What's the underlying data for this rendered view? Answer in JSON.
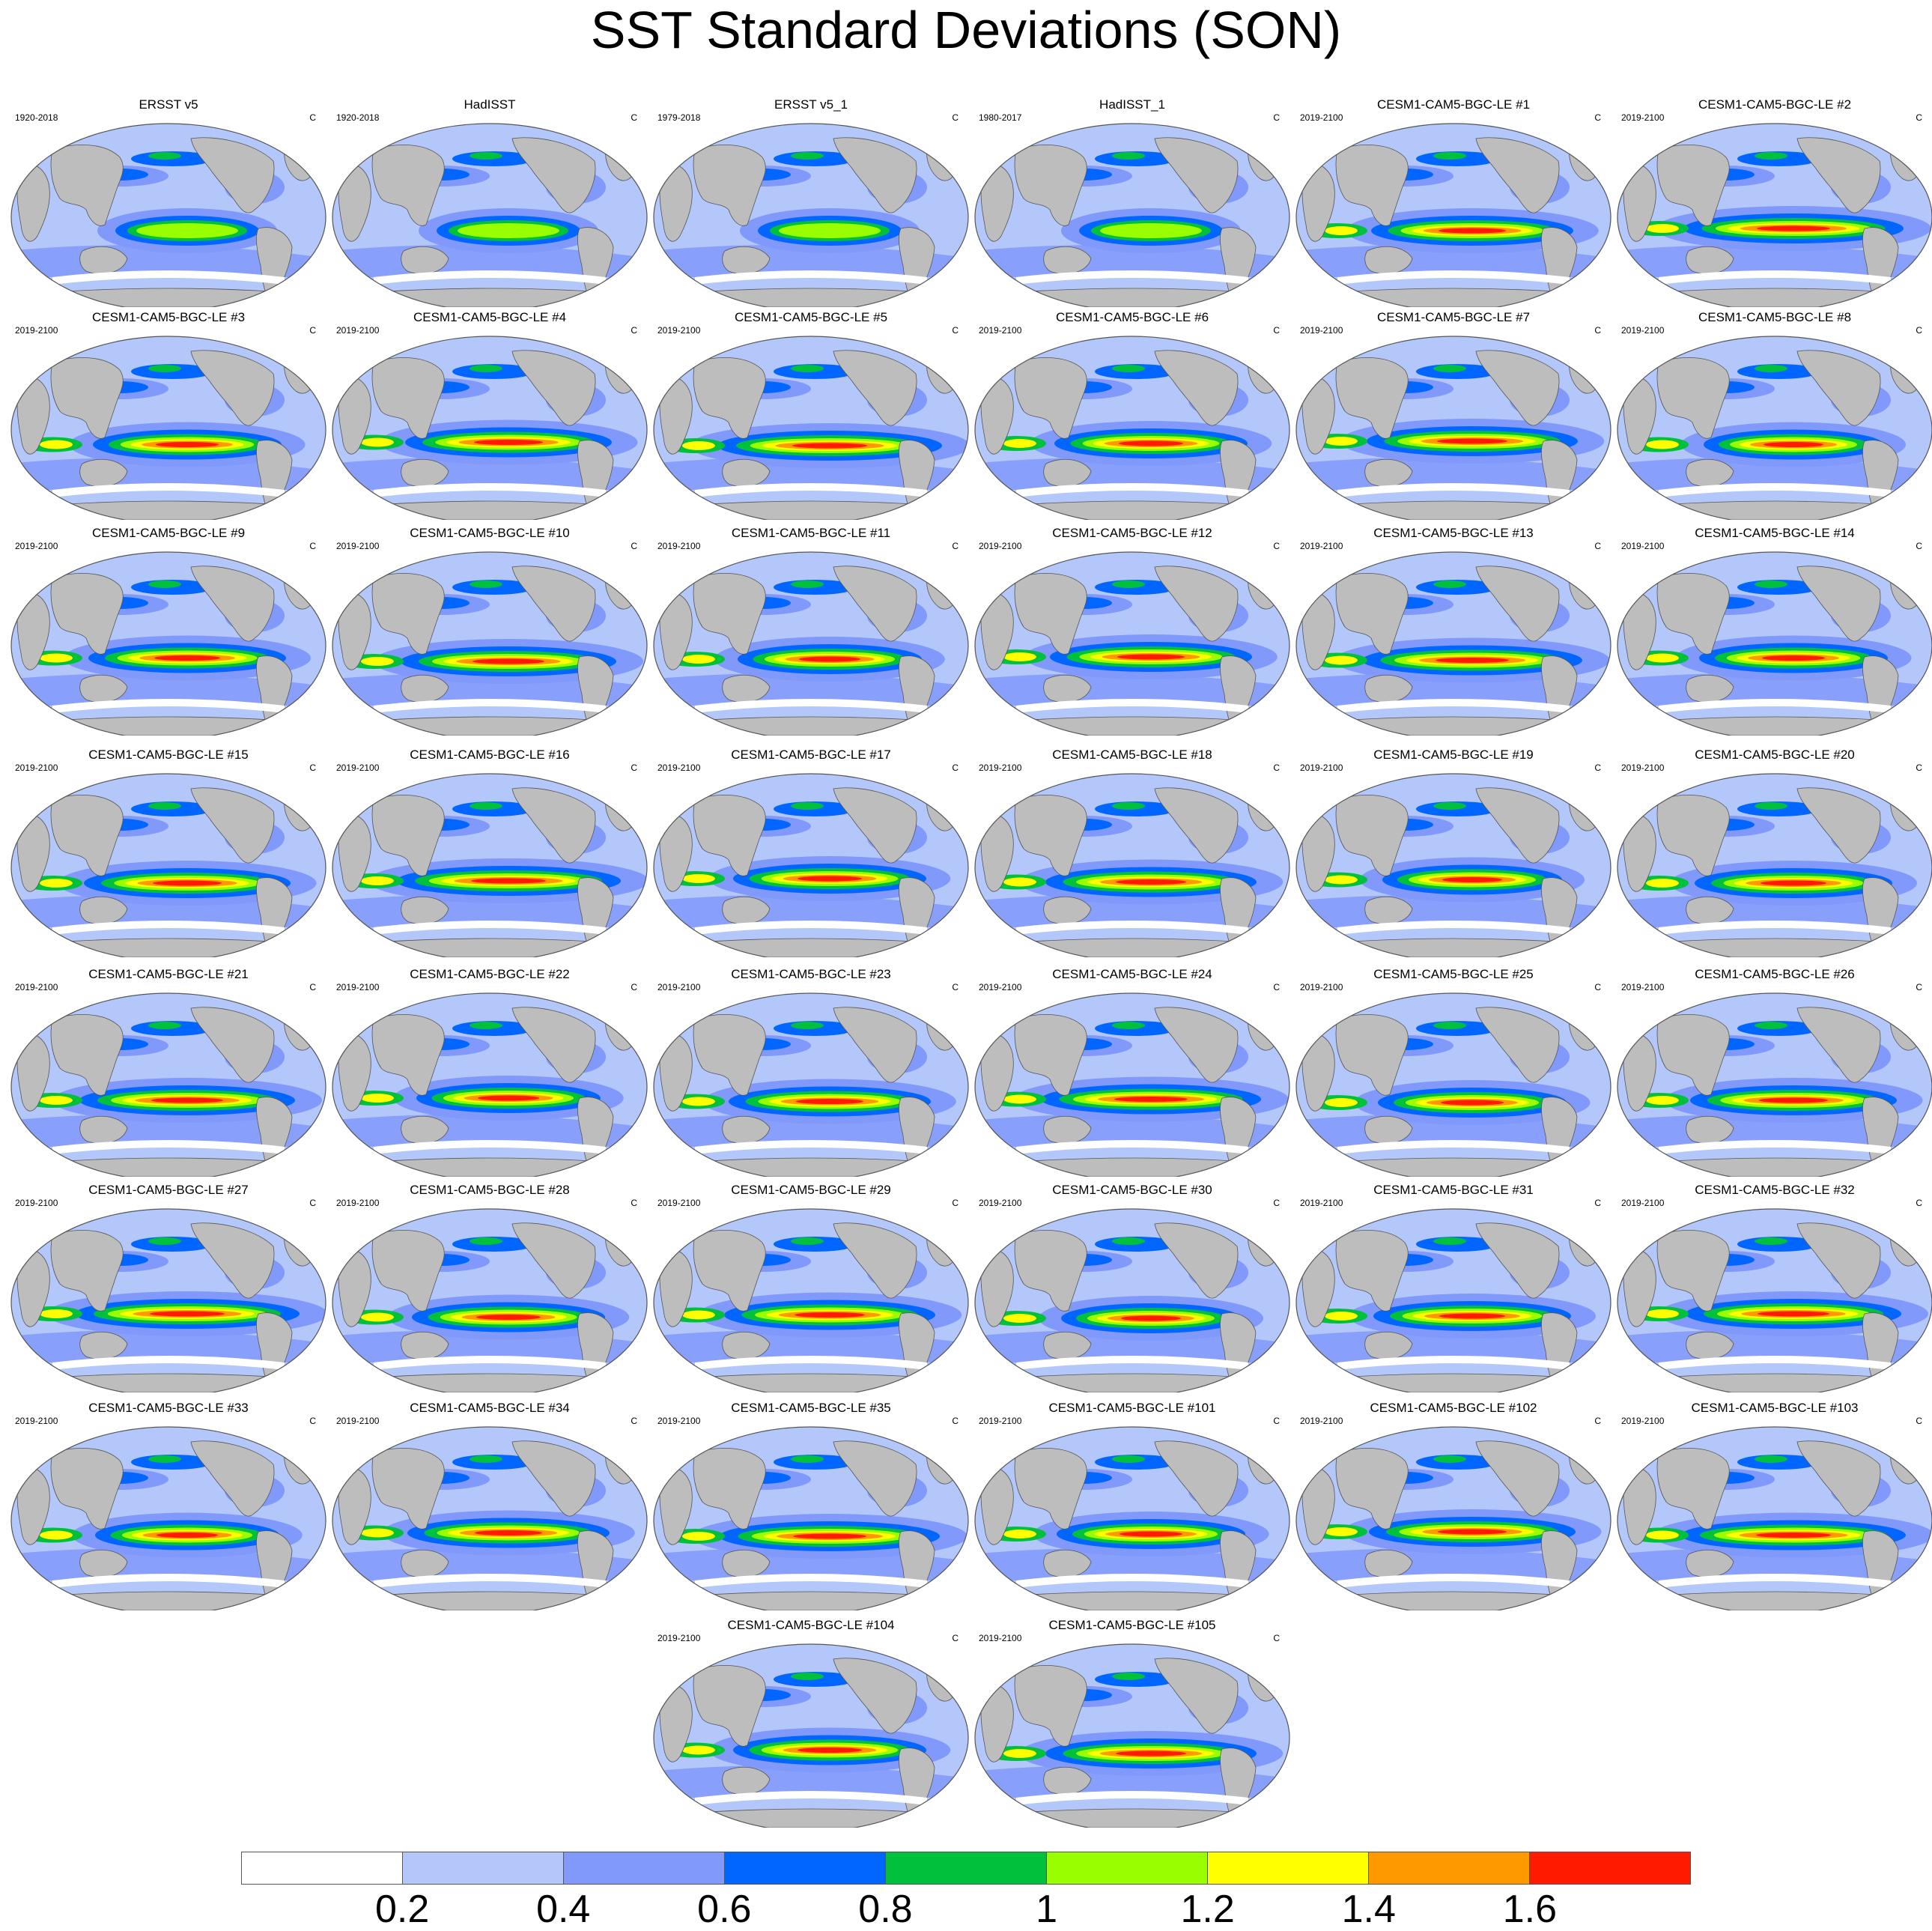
{
  "title": "SST Standard Deviations (SON)",
  "units": "C",
  "panels": [
    {
      "title": "ERSST v5",
      "years": "1920-2018"
    },
    {
      "title": "HadISST",
      "years": "1920-2018"
    },
    {
      "title": "ERSST v5_1",
      "years": "1979-2018"
    },
    {
      "title": "HadISST_1",
      "years": "1980-2017"
    },
    {
      "title": "CESM1-CAM5-BGC-LE #1",
      "years": "2019-2100"
    },
    {
      "title": "CESM1-CAM5-BGC-LE #2",
      "years": "2019-2100"
    },
    {
      "title": "CESM1-CAM5-BGC-LE #3",
      "years": "2019-2100"
    },
    {
      "title": "CESM1-CAM5-BGC-LE #4",
      "years": "2019-2100"
    },
    {
      "title": "CESM1-CAM5-BGC-LE #5",
      "years": "2019-2100"
    },
    {
      "title": "CESM1-CAM5-BGC-LE #6",
      "years": "2019-2100"
    },
    {
      "title": "CESM1-CAM5-BGC-LE #7",
      "years": "2019-2100"
    },
    {
      "title": "CESM1-CAM5-BGC-LE #8",
      "years": "2019-2100"
    },
    {
      "title": "CESM1-CAM5-BGC-LE #9",
      "years": "2019-2100"
    },
    {
      "title": "CESM1-CAM5-BGC-LE #10",
      "years": "2019-2100"
    },
    {
      "title": "CESM1-CAM5-BGC-LE #11",
      "years": "2019-2100"
    },
    {
      "title": "CESM1-CAM5-BGC-LE #12",
      "years": "2019-2100"
    },
    {
      "title": "CESM1-CAM5-BGC-LE #13",
      "years": "2019-2100"
    },
    {
      "title": "CESM1-CAM5-BGC-LE #14",
      "years": "2019-2100"
    },
    {
      "title": "CESM1-CAM5-BGC-LE #15",
      "years": "2019-2100"
    },
    {
      "title": "CESM1-CAM5-BGC-LE #16",
      "years": "2019-2100"
    },
    {
      "title": "CESM1-CAM5-BGC-LE #17",
      "years": "2019-2100"
    },
    {
      "title": "CESM1-CAM5-BGC-LE #18",
      "years": "2019-2100"
    },
    {
      "title": "CESM1-CAM5-BGC-LE #19",
      "years": "2019-2100"
    },
    {
      "title": "CESM1-CAM5-BGC-LE #20",
      "years": "2019-2100"
    },
    {
      "title": "CESM1-CAM5-BGC-LE #21",
      "years": "2019-2100"
    },
    {
      "title": "CESM1-CAM5-BGC-LE #22",
      "years": "2019-2100"
    },
    {
      "title": "CESM1-CAM5-BGC-LE #23",
      "years": "2019-2100"
    },
    {
      "title": "CESM1-CAM5-BGC-LE #24",
      "years": "2019-2100"
    },
    {
      "title": "CESM1-CAM5-BGC-LE #25",
      "years": "2019-2100"
    },
    {
      "title": "CESM1-CAM5-BGC-LE #26",
      "years": "2019-2100"
    },
    {
      "title": "CESM1-CAM5-BGC-LE #27",
      "years": "2019-2100"
    },
    {
      "title": "CESM1-CAM5-BGC-LE #28",
      "years": "2019-2100"
    },
    {
      "title": "CESM1-CAM5-BGC-LE #29",
      "years": "2019-2100"
    },
    {
      "title": "CESM1-CAM5-BGC-LE #30",
      "years": "2019-2100"
    },
    {
      "title": "CESM1-CAM5-BGC-LE #31",
      "years": "2019-2100"
    },
    {
      "title": "CESM1-CAM5-BGC-LE #32",
      "years": "2019-2100"
    },
    {
      "title": "CESM1-CAM5-BGC-LE #33",
      "years": "2019-2100"
    },
    {
      "title": "CESM1-CAM5-BGC-LE #34",
      "years": "2019-2100"
    },
    {
      "title": "CESM1-CAM5-BGC-LE #35",
      "years": "2019-2100"
    },
    {
      "title": "CESM1-CAM5-BGC-LE #101",
      "years": "2019-2100"
    },
    {
      "title": "CESM1-CAM5-BGC-LE #102",
      "years": "2019-2100"
    },
    {
      "title": "CESM1-CAM5-BGC-LE #103",
      "years": "2019-2100"
    },
    {
      "title": "CESM1-CAM5-BGC-LE #104",
      "years": "2019-2100"
    },
    {
      "title": "CESM1-CAM5-BGC-LE #105",
      "years": "2019-2100"
    }
  ],
  "colorbar": {
    "colors": [
      "#ffffff",
      "#b4c7fa",
      "#8099fa",
      "#0066ff",
      "#00c03c",
      "#99ff00",
      "#ffff00",
      "#ff9900",
      "#ff1a00"
    ],
    "labels": [
      "0.2",
      "0.4",
      "0.6",
      "0.8",
      "1",
      "1.2",
      "1.4",
      "1.6"
    ]
  },
  "colors": {
    "land": "#bdbdbd",
    "ocean_background": "#b4c7fa"
  }
}
